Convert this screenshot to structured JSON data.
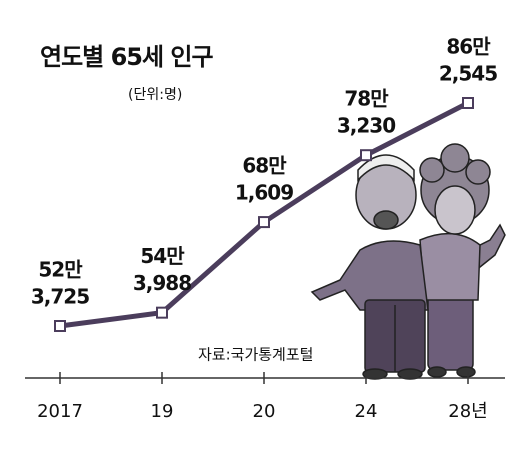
{
  "chart_data": {
    "type": "line",
    "title": "연도별 65세 인구",
    "subtitle": "(단위:명)",
    "source": "자료:국가통계포털",
    "categories": [
      "2017",
      "19",
      "20",
      "24",
      "28년"
    ],
    "values": [
      523725,
      543988,
      681609,
      783230,
      862545
    ],
    "value_labels": [
      [
        "52만",
        "3,725"
      ],
      [
        "54만",
        "3,988"
      ],
      [
        "68만",
        "1,609"
      ],
      [
        "78만",
        "3,230"
      ],
      [
        "86만",
        "2,545"
      ]
    ],
    "color": "#4b3d5c"
  }
}
